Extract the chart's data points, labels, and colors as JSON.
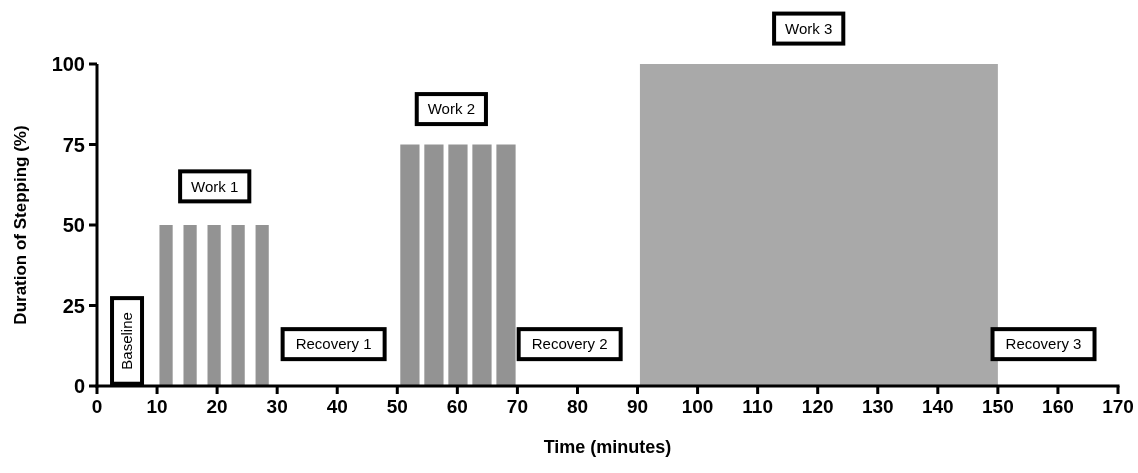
{
  "chart_data": {
    "type": "area",
    "xlabel": "Time (minutes)",
    "ylabel": "Duration of Stepping (%)",
    "xlim": [
      0,
      170
    ],
    "xticks": [
      0,
      10,
      20,
      30,
      40,
      50,
      60,
      70,
      80,
      90,
      100,
      110,
      120,
      130,
      140,
      150,
      160,
      170
    ],
    "ylim": [
      0,
      100
    ],
    "yticks": [
      0,
      25,
      50,
      75,
      100
    ],
    "grid": false,
    "series": [
      {
        "color": "#939393",
        "x": [
          10.4,
          10.4,
          12.6,
          12.6,
          14.4,
          14.4,
          16.6,
          16.6,
          18.4,
          18.4,
          20.6,
          20.6,
          22.4,
          22.4,
          24.6,
          24.6,
          26.4,
          26.4,
          28.6,
          28.6
        ],
        "values": [
          0,
          50,
          50,
          0,
          0,
          50,
          50,
          0,
          0,
          50,
          50,
          0,
          0,
          50,
          50,
          0,
          0,
          50,
          50,
          0
        ]
      },
      {
        "color": "#939393",
        "x": [
          50.5,
          50.5,
          53.7,
          53.7,
          54.5,
          54.5,
          57.7,
          57.7,
          58.5,
          58.5,
          61.7,
          61.7,
          62.5,
          62.5,
          65.7,
          65.7,
          66.5,
          66.5,
          69.7,
          69.7
        ],
        "values": [
          0,
          75,
          75,
          0,
          0,
          75,
          75,
          0,
          0,
          75,
          75,
          0,
          0,
          75,
          75,
          0,
          0,
          75,
          75,
          0
        ]
      },
      {
        "color": "#a9a9a9",
        "x": [
          90.4,
          90.4,
          150,
          150
        ],
        "values": [
          0,
          100,
          100,
          0
        ]
      }
    ],
    "annotations": [
      "Baseline",
      "Work 1",
      "Recovery 1",
      "Work 2",
      "Recovery 2",
      "Work 3",
      "Recovery 3"
    ]
  }
}
